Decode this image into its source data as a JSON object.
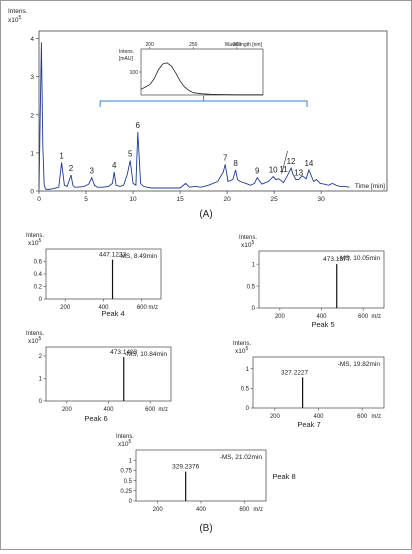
{
  "chart_data": [
    {
      "type": "line",
      "panel_label": "(A)",
      "ylabel": "Intens.",
      "y_scale": "x10^5",
      "xlabel": "Time [min]",
      "xlim": [
        0,
        37
      ],
      "ylim": [
        0,
        4.2
      ],
      "x_ticks": [
        0,
        5,
        10,
        15,
        20,
        25,
        30
      ],
      "y_ticks": [
        0,
        1,
        2,
        3,
        4
      ],
      "series_color": "#1f3a93",
      "series": [
        {
          "x": [
            0,
            0.25,
            0.4,
            0.55,
            0.7,
            1.0,
            1.5,
            2.1,
            2.4,
            2.7,
            3.0,
            3.4,
            3.6,
            3.8,
            4.1,
            4.8,
            5.3,
            5.6,
            5.9,
            6.2,
            6.8,
            7.4,
            7.8,
            8.0,
            8.2,
            8.6,
            9.0,
            9.4,
            9.7,
            10.0,
            10.3,
            10.5,
            10.8,
            11.1,
            11.5,
            12.0,
            13,
            14,
            15,
            15.6,
            16,
            16.6,
            17.2,
            18,
            19.0,
            19.6,
            19.8,
            20.1,
            20.6,
            20.9,
            21.1,
            21.4,
            22,
            22.5,
            22.9,
            23.2,
            23.7,
            24.4,
            24.9,
            25.2,
            25.5,
            25.7,
            26.0,
            26.4,
            26.8,
            27.0,
            27.3,
            27.6,
            28.0,
            28.4,
            28.7,
            29.2,
            29.5,
            29.9,
            30.3,
            30.8,
            31.2,
            31.6,
            32.0,
            32.5,
            33
          ],
          "y": [
            0.05,
            3.9,
            1.2,
            0.15,
            0.05,
            0.04,
            0.06,
            0.1,
            0.75,
            0.15,
            0.12,
            0.42,
            0.15,
            0.1,
            0.1,
            0.12,
            0.18,
            0.35,
            0.15,
            0.1,
            0.1,
            0.12,
            0.2,
            0.5,
            0.15,
            0.12,
            0.15,
            0.45,
            0.8,
            0.2,
            0.15,
            1.55,
            0.2,
            0.12,
            0.1,
            0.08,
            0.08,
            0.08,
            0.08,
            0.2,
            0.1,
            0.12,
            0.1,
            0.15,
            0.25,
            0.5,
            0.7,
            0.25,
            0.3,
            0.55,
            0.3,
            0.25,
            0.2,
            0.15,
            0.2,
            0.35,
            0.18,
            0.25,
            0.38,
            0.3,
            0.32,
            0.28,
            0.22,
            0.4,
            0.6,
            0.45,
            0.3,
            0.3,
            0.4,
            0.32,
            0.55,
            0.25,
            0.3,
            0.2,
            0.18,
            0.15,
            0.2,
            0.15,
            0.12,
            0.12,
            0.1
          ]
        }
      ],
      "peak_labels": [
        {
          "text": "1",
          "x": 2.4,
          "y": 0.75
        },
        {
          "text": "2",
          "x": 3.4,
          "y": 0.42
        },
        {
          "text": "3",
          "x": 5.6,
          "y": 0.35
        },
        {
          "text": "4",
          "x": 8.0,
          "y": 0.5
        },
        {
          "text": "5",
          "x": 9.7,
          "y": 0.8
        },
        {
          "text": "6",
          "x": 10.5,
          "y": 1.55
        },
        {
          "text": "7",
          "x": 19.8,
          "y": 0.7
        },
        {
          "text": "8",
          "x": 20.9,
          "y": 0.55
        },
        {
          "text": "9",
          "x": 23.2,
          "y": 0.35
        },
        {
          "text": "10",
          "x": 24.9,
          "y": 0.38
        },
        {
          "text": "11",
          "x": 26.0,
          "y": 0.4
        },
        {
          "text": "12",
          "x": 26.8,
          "y": 0.6
        },
        {
          "text": "13",
          "x": 27.6,
          "y": 0.3
        },
        {
          "text": "14",
          "x": 28.7,
          "y": 0.55
        }
      ],
      "inset": {
        "xlabel": "Wavelength [nm]",
        "ylabel": "Intens. [mAU]",
        "xlim": [
          190,
          330
        ],
        "x_ticks": [
          200,
          250,
          300
        ],
        "ylim": [
          0,
          200
        ],
        "y_ticks": [
          100
        ],
        "x": [
          190,
          195,
          200,
          205,
          210,
          215,
          220,
          225,
          230,
          235,
          240,
          245,
          250,
          260,
          270,
          280,
          300,
          320,
          330
        ],
        "y": [
          25,
          35,
          45,
          70,
          110,
          135,
          140,
          125,
          95,
          60,
          35,
          20,
          10,
          5,
          3,
          2,
          1,
          1,
          1
        ]
      }
    },
    {
      "type": "bar",
      "title": "-MS, 8.49min",
      "caption": "Peak 4",
      "ylabel": "Intens.",
      "y_scale": "x10^5",
      "xlabel": "m/z",
      "xlim": [
        100,
        700
      ],
      "x_ticks": [
        200,
        400,
        600
      ],
      "ylim": [
        0,
        0.8
      ],
      "y_ticks": [
        0,
        0.2,
        0.4,
        0.6
      ],
      "x": [
        447.1223
      ],
      "values": [
        0.63
      ],
      "peak_annotation": "447.1223"
    },
    {
      "type": "bar",
      "title": "-MS, 10.05min",
      "caption": "Peak 5",
      "ylabel": "Intens.",
      "y_scale": "x10^5",
      "xlabel": "m/z",
      "xlim": [
        100,
        700
      ],
      "x_ticks": [
        200,
        400,
        600
      ],
      "ylim": [
        0,
        1.3
      ],
      "y_ticks": [
        0,
        0.5,
        1.0
      ],
      "x": [
        473.1377
      ],
      "values": [
        1.0
      ],
      "peak_annotation": "473.1377"
    },
    {
      "type": "bar",
      "title": "-MS, 10.84min",
      "caption": "Peak 6",
      "ylabel": "Intens.",
      "y_scale": "x10^5",
      "xlabel": "m/z",
      "xlim": [
        100,
        700
      ],
      "x_ticks": [
        200,
        400,
        600
      ],
      "ylim": [
        0,
        2.4
      ],
      "y_ticks": [
        0,
        1,
        2
      ],
      "x": [
        473.1403
      ],
      "values": [
        1.95
      ],
      "peak_annotation": "473.1403"
    },
    {
      "type": "bar",
      "title": "-MS, 19.82min",
      "caption": "Peak 7",
      "ylabel": "Intens.",
      "y_scale": "x10^5",
      "xlabel": "m/z",
      "xlim": [
        100,
        700
      ],
      "x_ticks": [
        200,
        400,
        600
      ],
      "ylim": [
        0,
        1.3
      ],
      "y_ticks": [
        0,
        0.5,
        1.0
      ],
      "x": [
        327.2227
      ],
      "values": [
        0.78
      ],
      "peak_annotation": "327.2227"
    },
    {
      "type": "bar",
      "title": "-MS, 21.02min",
      "caption": "Peak 8",
      "ylabel": "Intens.",
      "y_scale": "x10^5",
      "xlabel": "m/z",
      "xlim": [
        100,
        700
      ],
      "x_ticks": [
        200,
        400,
        600
      ],
      "ylim": [
        0,
        1.25
      ],
      "y_ticks": [
        0,
        0.25,
        0.5,
        0.75,
        1.0
      ],
      "x": [
        329.2376
      ],
      "values": [
        0.72
      ],
      "peak_annotation": "329.2376"
    }
  ],
  "figure": {
    "panel_b_label": "(B)"
  }
}
